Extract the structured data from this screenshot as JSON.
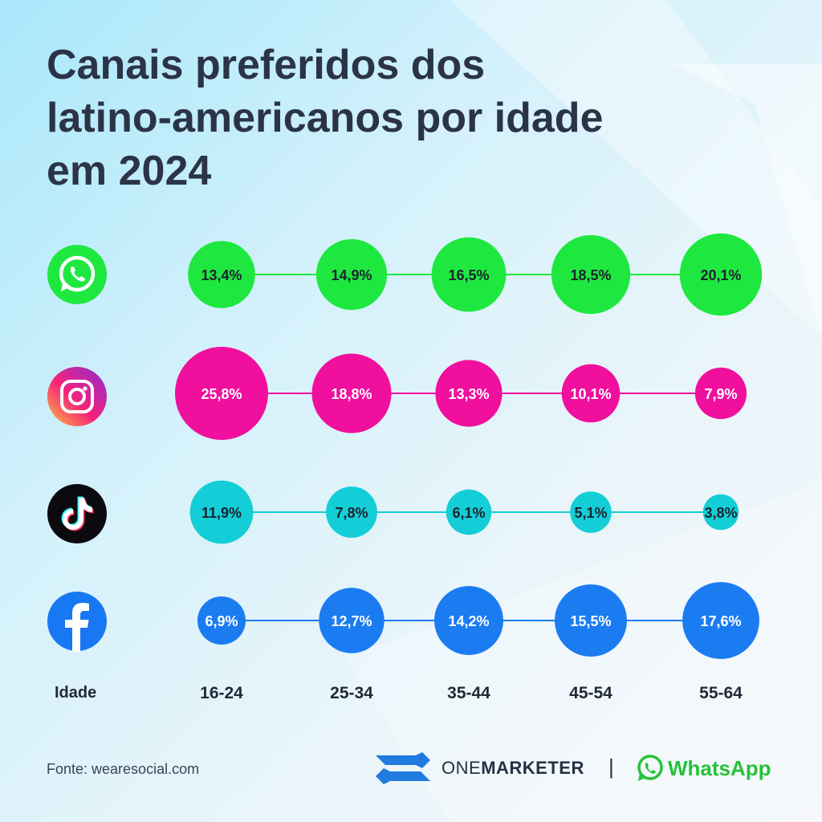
{
  "title_lines": [
    "Canais preferidos dos",
    "latino-americanos por idade",
    "em 2024"
  ],
  "axis_label": "Idade",
  "footer": {
    "source": "Fonte: wearesocial.com",
    "brand_one_light": "ONE",
    "brand_one_bold": "MARKETER",
    "separator": "|",
    "brand_whatsapp": "WhatsApp"
  },
  "colors": {
    "whatsapp": "#1ee83f",
    "instagram": "#f10f9e",
    "tiktok": "#13ced6",
    "facebook": "#1b7cf2",
    "text_dark": "#2b3446"
  },
  "icons": [
    "whatsapp-icon",
    "instagram-icon",
    "tiktok-icon",
    "facebook-icon"
  ],
  "chart_data": {
    "type": "bubble",
    "categories": [
      "16-24",
      "25-34",
      "35-44",
      "45-54",
      "55-64"
    ],
    "series": [
      {
        "values": [
          13.4,
          14.9,
          16.5,
          18.5,
          20.1
        ],
        "labels": [
          "13,4%",
          "14,9%",
          "16,5%",
          "18,5%",
          "20,1%"
        ],
        "color": "#1ee83f",
        "icon": "whatsapp-icon"
      },
      {
        "values": [
          25.8,
          18.8,
          13.3,
          10.1,
          7.9
        ],
        "labels": [
          "25,8%",
          "18,8%",
          "13,3%",
          "10,1%",
          "7,9%"
        ],
        "color": "#f10f9e",
        "icon": "instagram-icon"
      },
      {
        "values": [
          11.9,
          7.8,
          6.1,
          5.1,
          3.8
        ],
        "labels": [
          "11,9%",
          "7,8%",
          "6,1%",
          "5,1%",
          "3,8%"
        ],
        "color": "#13ced6",
        "icon": "tiktok-icon"
      },
      {
        "values": [
          6.9,
          12.7,
          14.2,
          15.5,
          17.6
        ],
        "labels": [
          "6,9%",
          "12,7%",
          "14,2%",
          "15,5%",
          "17,6%"
        ],
        "color": "#1b7cf2",
        "icon": "facebook-icon"
      }
    ]
  }
}
